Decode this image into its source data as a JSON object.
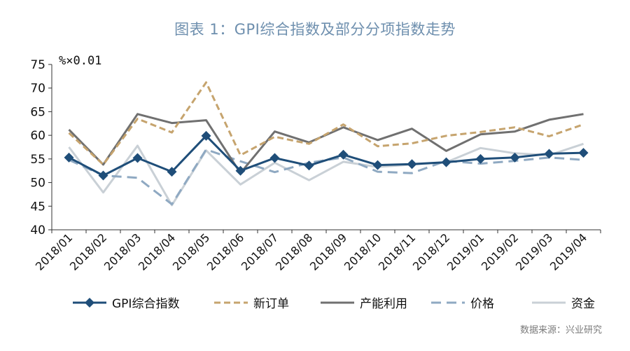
{
  "page": {
    "title": "图表 1：GPI综合指数及部分分项指数走势",
    "source": "数据来源：兴业研究"
  },
  "chart_data": {
    "type": "line",
    "unit_label": "%×0.01",
    "categories": [
      "2018/01",
      "2018/02",
      "2018/03",
      "2018/04",
      "2018/05",
      "2018/06",
      "2018/07",
      "2018/08",
      "2018/09",
      "2018/10",
      "2018/11",
      "2018/12",
      "2019/01",
      "2019/02",
      "2019/03",
      "2019/04"
    ],
    "ylim": [
      40,
      75
    ],
    "yticks": [
      40,
      45,
      50,
      55,
      60,
      65,
      70,
      75
    ],
    "legend_position": "bottom",
    "series": [
      {
        "name": "GPI综合指数",
        "color": "#1f4e79",
        "dash": "solid",
        "marker": "diamond",
        "values": [
          55.3,
          51.5,
          55.2,
          52.3,
          59.9,
          52.5,
          55.2,
          53.6,
          55.9,
          53.7,
          53.9,
          54.3,
          55.0,
          55.3,
          56.1,
          56.3
        ]
      },
      {
        "name": "新订单",
        "color": "#c6a46e",
        "dash": "dashed",
        "marker": "none",
        "values": [
          60.5,
          53.8,
          63.5,
          60.6,
          71.2,
          55.8,
          59.7,
          58.2,
          62.3,
          57.7,
          58.3,
          59.9,
          60.7,
          61.7,
          59.8,
          62.3
        ]
      },
      {
        "name": "产能利用",
        "color": "#707070",
        "dash": "solid",
        "marker": "none",
        "values": [
          61.2,
          53.8,
          64.5,
          62.6,
          63.2,
          52.0,
          60.8,
          58.5,
          61.7,
          59.0,
          61.4,
          56.7,
          60.2,
          60.8,
          63.3,
          64.5
        ]
      },
      {
        "name": "价格",
        "color": "#8fa9c2",
        "dash": "longdash",
        "marker": "none",
        "values": [
          54.8,
          51.5,
          51.0,
          45.4,
          57.0,
          54.5,
          52.2,
          54.2,
          55.3,
          52.3,
          52.0,
          54.6,
          54.0,
          54.6,
          55.3,
          54.8
        ]
      },
      {
        "name": "资金",
        "color": "#c9d0d6",
        "dash": "solid",
        "marker": "none",
        "values": [
          57.5,
          47.9,
          57.8,
          45.2,
          56.8,
          49.6,
          54.2,
          50.5,
          54.4,
          53.3,
          53.8,
          54.3,
          57.3,
          56.2,
          55.8,
          58.2
        ]
      }
    ]
  }
}
